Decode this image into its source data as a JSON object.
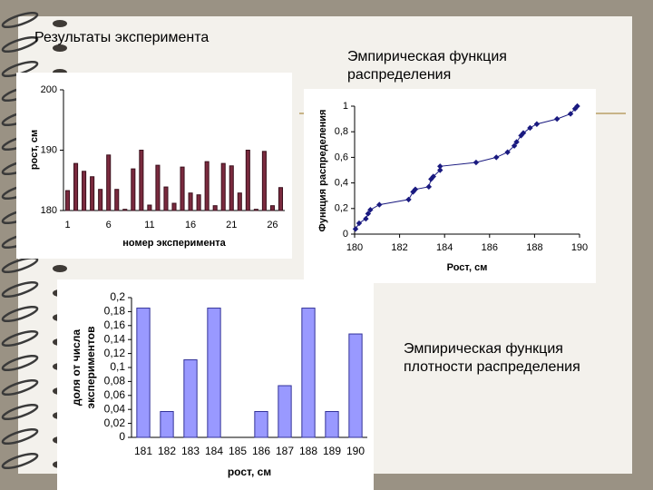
{
  "slide": {
    "title": "Результаты эксперимента",
    "caption_cdf": "Эмпирическая функция распределения",
    "caption_pdf": "Эмпирическая функция плотности распределения"
  },
  "chart_data": [
    {
      "type": "bar",
      "xlabel": "номер эксперимента",
      "ylabel": "рост, см",
      "categories": [
        "1",
        null,
        null,
        null,
        null,
        "6",
        null,
        null,
        null,
        null,
        "11",
        null,
        null,
        null,
        null,
        "16",
        null,
        null,
        null,
        null,
        "21",
        null,
        null,
        null,
        null,
        "26",
        null
      ],
      "values": [
        183.3,
        187.8,
        186.5,
        185.6,
        183.5,
        189.2,
        183.5,
        180.2,
        186.9,
        190,
        180.9,
        187.5,
        183.9,
        181.2,
        187.2,
        182.9,
        182.6,
        188.1,
        180.8,
        187.8,
        187.4,
        182.9,
        190,
        180.2,
        189.8,
        180.8,
        183.8
      ],
      "color": "#7a2a3e",
      "ylim": [
        180,
        200
      ],
      "yticks": [
        180,
        190,
        200
      ]
    },
    {
      "type": "line",
      "xlabel": "Рост, см",
      "ylabel": "Функция распределения",
      "x": [
        180.04,
        180.2,
        180.5,
        180.6,
        180.7,
        181.1,
        182.4,
        182.6,
        182.7,
        183.3,
        183.4,
        183.5,
        183.8,
        183.8,
        185.4,
        186.3,
        186.8,
        187.1,
        187.2,
        187.4,
        187.5,
        187.8,
        188.1,
        189,
        189.6,
        189.8,
        189.9
      ],
      "values": [
        0.04,
        0.085,
        0.12,
        0.16,
        0.19,
        0.23,
        0.27,
        0.33,
        0.35,
        0.37,
        0.43,
        0.45,
        0.5,
        0.53,
        0.56,
        0.6,
        0.64,
        0.69,
        0.72,
        0.77,
        0.79,
        0.83,
        0.86,
        0.9,
        0.94,
        0.98,
        1
      ],
      "color": "#1a1a80",
      "xlim": [
        180,
        190
      ],
      "xticks": [
        180,
        182,
        184,
        186,
        188,
        190
      ],
      "ylim": [
        0,
        1
      ],
      "yticks": [
        0,
        {
          "value": 0.2,
          "label": "0,2"
        },
        {
          "value": 0.4,
          "label": "0,4"
        },
        {
          "value": 0.6,
          "label": "0,6"
        },
        {
          "value": 0.8,
          "label": "0,8"
        },
        1
      ]
    },
    {
      "type": "bar",
      "xlabel": "рост, см",
      "ylabel": "доля от числа экспериментов",
      "categories": [
        "181",
        "182",
        "183",
        "184",
        "185",
        "186",
        "187",
        "188",
        "189",
        "190"
      ],
      "values": [
        0.185,
        0.037,
        0.111,
        0.185,
        0,
        0.037,
        0.074,
        0.185,
        0.037,
        0.148
      ],
      "color": "#9999ff",
      "ylim": [
        0,
        0.2
      ],
      "yticks": [
        0,
        {
          "value": 0.02,
          "label": "0,02"
        },
        {
          "value": 0.04,
          "label": "0,04"
        },
        {
          "value": 0.06,
          "label": "0,06"
        },
        {
          "value": 0.08,
          "label": "0,08"
        },
        {
          "value": 0.1,
          "label": "0,1"
        },
        {
          "value": 0.12,
          "label": "0,12"
        },
        {
          "value": 0.14,
          "label": "0,14"
        },
        {
          "value": 0.16,
          "label": "0,16"
        },
        {
          "value": 0.18,
          "label": "0,18"
        },
        {
          "value": 0.2,
          "label": "0,2"
        }
      ]
    }
  ]
}
